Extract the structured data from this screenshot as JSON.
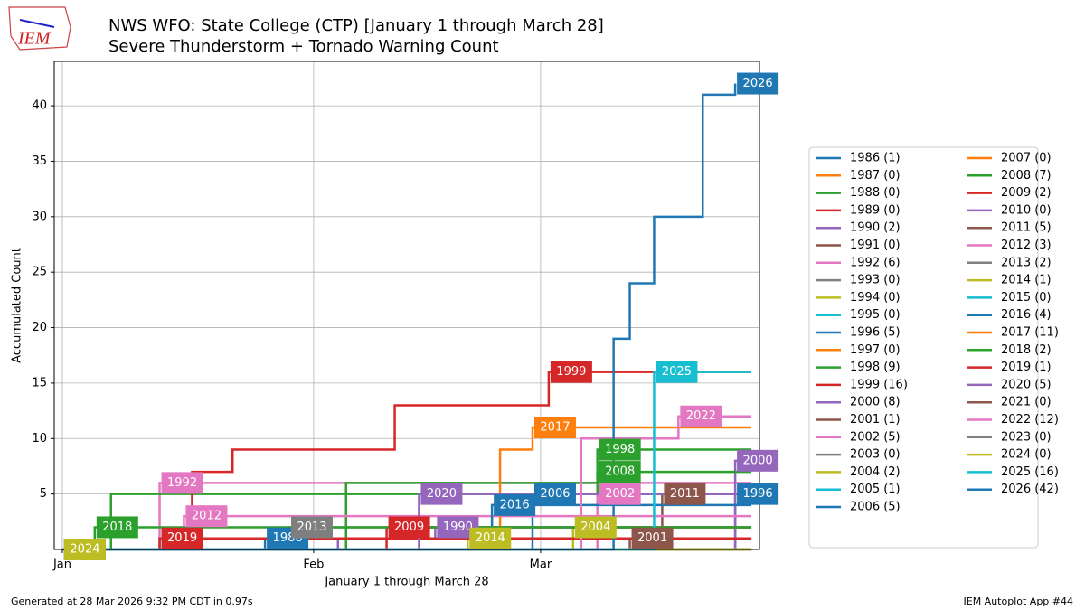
{
  "logo": "IEM",
  "footer": {
    "left": "Generated at 28 Mar 2026 9:32 PM CDT in 0.97s",
    "right": "IEM Autoplot App #44"
  },
  "chart_data": {
    "type": "step",
    "title": "NWS WFO: State College (CTP) [January 1 through March 28]",
    "subtitle": "Severe Thunderstorm + Tornado Warning Count",
    "x_label": "January 1 through March 28",
    "y_label": "Accumulated Count",
    "xlim": [
      0,
      87
    ],
    "ylim": [
      0,
      44
    ],
    "xticks": [
      {
        "value": 1,
        "label": "Jan"
      },
      {
        "value": 32,
        "label": "Feb"
      },
      {
        "value": 60,
        "label": "Mar"
      }
    ],
    "yticks": [
      5,
      10,
      15,
      20,
      25,
      30,
      35,
      40
    ],
    "grid": true,
    "legend": "right",
    "series": [
      {
        "name": "1986 (1)",
        "label": "1986",
        "color": "#1f77b4",
        "x": [
          1,
          26,
          86
        ],
        "values": [
          0,
          1,
          1
        ]
      },
      {
        "name": "1987 (0)",
        "label": "1987",
        "color": "#ff7f0e",
        "x": [
          1,
          86
        ],
        "values": [
          0,
          0
        ]
      },
      {
        "name": "1988 (0)",
        "label": "1988",
        "color": "#2ca02c",
        "x": [
          1,
          86
        ],
        "values": [
          0,
          0
        ]
      },
      {
        "name": "1989 (0)",
        "label": "1989",
        "color": "#d62728",
        "x": [
          1,
          86
        ],
        "values": [
          0,
          0
        ]
      },
      {
        "name": "1990 (2)",
        "label": "1990",
        "color": "#9467bd",
        "x": [
          1,
          35,
          47,
          86
        ],
        "values": [
          0,
          1,
          2,
          2
        ]
      },
      {
        "name": "1991 (0)",
        "label": "1991",
        "color": "#8c564b",
        "x": [
          1,
          86
        ],
        "values": [
          0,
          0
        ]
      },
      {
        "name": "1992 (6)",
        "label": "1992",
        "color": "#e377c2",
        "x": [
          1,
          13,
          86
        ],
        "values": [
          0,
          6,
          6
        ]
      },
      {
        "name": "1993 (0)",
        "label": "1993",
        "color": "#7f7f7f",
        "x": [
          1,
          86
        ],
        "values": [
          0,
          0
        ]
      },
      {
        "name": "1994 (0)",
        "label": "1994",
        "color": "#bcbd22",
        "x": [
          1,
          86
        ],
        "values": [
          0,
          0
        ]
      },
      {
        "name": "1995 (0)",
        "label": "1995",
        "color": "#17becf",
        "x": [
          1,
          86
        ],
        "values": [
          0,
          0
        ]
      },
      {
        "name": "1996 (5)",
        "label": "1996",
        "color": "#1f77b4",
        "x": [
          1,
          84,
          86
        ],
        "values": [
          0,
          5,
          5
        ]
      },
      {
        "name": "1997 (0)",
        "label": "1997",
        "color": "#ff7f0e",
        "x": [
          1,
          86
        ],
        "values": [
          0,
          0
        ]
      },
      {
        "name": "1998 (9)",
        "label": "1998",
        "color": "#2ca02c",
        "x": [
          1,
          7,
          67,
          86
        ],
        "values": [
          0,
          5,
          9,
          9
        ]
      },
      {
        "name": "1999 (16)",
        "label": "1999",
        "color": "#d62728",
        "x": [
          1,
          17,
          22,
          42,
          61,
          86
        ],
        "values": [
          0,
          7,
          9,
          13,
          16,
          16
        ]
      },
      {
        "name": "2000 (8)",
        "label": "2000",
        "color": "#9467bd",
        "x": [
          1,
          84,
          86
        ],
        "values": [
          0,
          8,
          8
        ]
      },
      {
        "name": "2001 (1)",
        "label": "2001",
        "color": "#8c564b",
        "x": [
          1,
          71,
          86
        ],
        "values": [
          0,
          1,
          1
        ]
      },
      {
        "name": "2002 (5)",
        "label": "2002",
        "color": "#e377c2",
        "x": [
          1,
          67,
          86
        ],
        "values": [
          0,
          5,
          5
        ]
      },
      {
        "name": "2003 (0)",
        "label": "2003",
        "color": "#7f7f7f",
        "x": [
          1,
          86
        ],
        "values": [
          0,
          0
        ]
      },
      {
        "name": "2004 (2)",
        "label": "2004",
        "color": "#bcbd22",
        "x": [
          1,
          64,
          86
        ],
        "values": [
          0,
          2,
          2
        ]
      },
      {
        "name": "2005 (1)",
        "label": "2005",
        "color": "#17becf",
        "x": [
          1,
          13,
          86
        ],
        "values": [
          0,
          1,
          1
        ]
      },
      {
        "name": "2006 (5)",
        "label": "2006",
        "color": "#1f77b4",
        "x": [
          1,
          59,
          86
        ],
        "values": [
          0,
          5,
          5
        ]
      },
      {
        "name": "2007 (0)",
        "label": "2007",
        "color": "#ff7f0e",
        "x": [
          1,
          86
        ],
        "values": [
          0,
          0
        ]
      },
      {
        "name": "2008 (7)",
        "label": "2008",
        "color": "#2ca02c",
        "x": [
          1,
          36,
          67,
          86
        ],
        "values": [
          0,
          6,
          7,
          7
        ]
      },
      {
        "name": "2009 (2)",
        "label": "2009",
        "color": "#d62728",
        "x": [
          1,
          41,
          86
        ],
        "values": [
          0,
          2,
          2
        ]
      },
      {
        "name": "2010 (0)",
        "label": "2010",
        "color": "#9467bd",
        "x": [
          1,
          86
        ],
        "values": [
          0,
          0
        ]
      },
      {
        "name": "2011 (5)",
        "label": "2011",
        "color": "#8c564b",
        "x": [
          1,
          75,
          86
        ],
        "values": [
          0,
          5,
          5
        ]
      },
      {
        "name": "2012 (3)",
        "label": "2012",
        "color": "#e377c2",
        "x": [
          1,
          16,
          86
        ],
        "values": [
          0,
          3,
          3
        ]
      },
      {
        "name": "2013 (2)",
        "label": "2013",
        "color": "#7f7f7f",
        "x": [
          1,
          29,
          86
        ],
        "values": [
          0,
          2,
          2
        ]
      },
      {
        "name": "2014 (1)",
        "label": "2014",
        "color": "#bcbd22",
        "x": [
          1,
          51,
          86
        ],
        "values": [
          0,
          1,
          1
        ]
      },
      {
        "name": "2015 (0)",
        "label": "2015",
        "color": "#17becf",
        "x": [
          1,
          86
        ],
        "values": [
          0,
          0
        ]
      },
      {
        "name": "2016 (4)",
        "label": "2016",
        "color": "#1f77b4",
        "x": [
          1,
          54,
          86
        ],
        "values": [
          0,
          4,
          4
        ]
      },
      {
        "name": "2017 (11)",
        "label": "2017",
        "color": "#ff7f0e",
        "x": [
          1,
          55,
          59,
          86
        ],
        "values": [
          0,
          9,
          11,
          11
        ]
      },
      {
        "name": "2018 (2)",
        "label": "2018",
        "color": "#2ca02c",
        "x": [
          1,
          5,
          86
        ],
        "values": [
          0,
          2,
          2
        ]
      },
      {
        "name": "2019 (1)",
        "label": "2019",
        "color": "#d62728",
        "x": [
          1,
          13,
          86
        ],
        "values": [
          0,
          1,
          1
        ]
      },
      {
        "name": "2020 (5)",
        "label": "2020",
        "color": "#9467bd",
        "x": [
          1,
          45,
          86
        ],
        "values": [
          0,
          5,
          5
        ]
      },
      {
        "name": "2021 (0)",
        "label": "2021",
        "color": "#8c564b",
        "x": [
          1,
          86
        ],
        "values": [
          0,
          0
        ]
      },
      {
        "name": "2022 (12)",
        "label": "2022",
        "color": "#e377c2",
        "x": [
          1,
          65,
          77,
          86
        ],
        "values": [
          0,
          10,
          12,
          12
        ]
      },
      {
        "name": "2023 (0)",
        "label": "2023",
        "color": "#7f7f7f",
        "x": [
          1,
          86
        ],
        "values": [
          0,
          0
        ]
      },
      {
        "name": "2024 (0)",
        "label": "2024",
        "color": "#bcbd22",
        "x": [
          1,
          86
        ],
        "values": [
          0,
          0
        ]
      },
      {
        "name": "2025 (16)",
        "label": "2025",
        "color": "#17becf",
        "x": [
          1,
          74,
          86
        ],
        "values": [
          0,
          16,
          16
        ]
      },
      {
        "name": "2026 (42)",
        "label": "2026",
        "color": "#1f77b4",
        "x": [
          1,
          69,
          71,
          74,
          80,
          84
        ],
        "values": [
          0,
          19,
          24,
          30,
          41,
          42
        ]
      }
    ]
  }
}
